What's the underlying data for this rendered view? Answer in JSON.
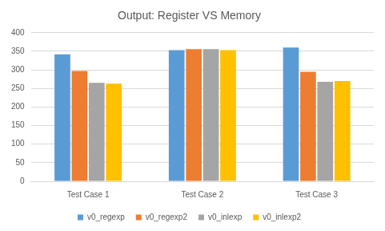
{
  "chart_data": {
    "type": "bar",
    "title": "Output: Register VS Memory",
    "categories": [
      "Test Case 1",
      "Test Case 2",
      "Test Case 3"
    ],
    "series": [
      {
        "name": "v0_regexp",
        "color": "#5b9bd5",
        "values": [
          342,
          353,
          360
        ]
      },
      {
        "name": "v0_regexp2",
        "color": "#ed7d31",
        "values": [
          297,
          356,
          295
        ]
      },
      {
        "name": "v0_inlexp",
        "color": "#a5a5a5",
        "values": [
          265,
          356,
          268
        ]
      },
      {
        "name": "v0_inlexp2",
        "color": "#ffc000",
        "values": [
          263,
          353,
          270
        ]
      }
    ],
    "ylim": [
      0,
      400
    ],
    "yticks": [
      0,
      50,
      100,
      150,
      200,
      250,
      300,
      350,
      400
    ],
    "grid": true,
    "legend": "bottom"
  }
}
